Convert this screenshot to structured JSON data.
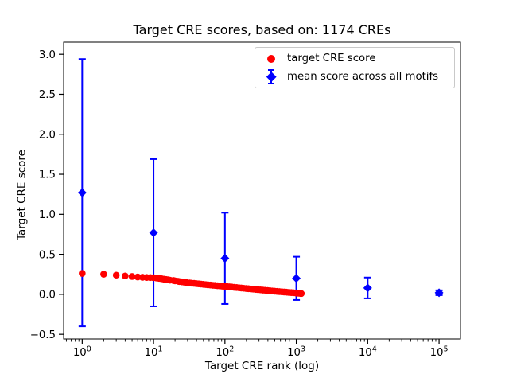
{
  "figure": {
    "background": "#ffffff",
    "frame_color": "#000000"
  },
  "legend": {
    "items": [
      {
        "label": "target CRE score",
        "marker": "red-circle",
        "color": "#ff0000"
      },
      {
        "label": "mean score across all motifs",
        "marker": "blue-diamond-errorbar",
        "color": "#0000ff"
      }
    ]
  },
  "chart_data": {
    "type": "scatter",
    "title": "Target CRE scores, based on: 1174 CREs",
    "xlabel": "Target CRE rank (log)",
    "ylabel": "Target CRE score",
    "x_scale": "log",
    "n_cres": 1174,
    "xlim_log": [
      -0.26,
      5.3
    ],
    "ylim": [
      -0.558,
      3.151
    ],
    "xticks": [
      {
        "value": 1,
        "base": "10",
        "exp": "0"
      },
      {
        "value": 10,
        "base": "10",
        "exp": "1"
      },
      {
        "value": 100,
        "base": "10",
        "exp": "2"
      },
      {
        "value": 1000,
        "base": "10",
        "exp": "3"
      },
      {
        "value": 10000,
        "base": "10",
        "exp": "4"
      },
      {
        "value": 100000,
        "base": "10",
        "exp": "5"
      }
    ],
    "yticks": [
      {
        "value": -0.5,
        "label": "−0.5"
      },
      {
        "value": 0.0,
        "label": "0.0"
      },
      {
        "value": 0.5,
        "label": "0.5"
      },
      {
        "value": 1.0,
        "label": "1.0"
      },
      {
        "value": 1.5,
        "label": "1.5"
      },
      {
        "value": 2.0,
        "label": "2.0"
      },
      {
        "value": 2.5,
        "label": "2.5"
      },
      {
        "value": 3.0,
        "label": "3.0"
      }
    ],
    "series": [
      {
        "name": "target CRE score",
        "marker": "circle",
        "color": "#ff0000",
        "points": [
          [
            1,
            0.262
          ],
          [
            2,
            0.252
          ],
          [
            3,
            0.24
          ],
          [
            4,
            0.23
          ],
          [
            5,
            0.223
          ],
          [
            6,
            0.217
          ],
          [
            7,
            0.213
          ],
          [
            8,
            0.211
          ],
          [
            9,
            0.21
          ],
          [
            10,
            0.208
          ],
          [
            11,
            0.204
          ],
          [
            12,
            0.199
          ],
          [
            13,
            0.195
          ],
          [
            14,
            0.19
          ],
          [
            15,
            0.186
          ],
          [
            16,
            0.182
          ],
          [
            17,
            0.177
          ],
          [
            19,
            0.173
          ],
          [
            20,
            0.169
          ],
          [
            22,
            0.164
          ],
          [
            23,
            0.16
          ],
          [
            25,
            0.156
          ],
          [
            27,
            0.152
          ],
          [
            29,
            0.147
          ],
          [
            32,
            0.143
          ],
          [
            34,
            0.14
          ],
          [
            37,
            0.137
          ],
          [
            40,
            0.134
          ],
          [
            43,
            0.131
          ],
          [
            46,
            0.128
          ],
          [
            50,
            0.125
          ],
          [
            54,
            0.122
          ],
          [
            58,
            0.119
          ],
          [
            63,
            0.116
          ],
          [
            68,
            0.113
          ],
          [
            73,
            0.111
          ],
          [
            79,
            0.108
          ],
          [
            86,
            0.105
          ],
          [
            92,
            0.103
          ],
          [
            100,
            0.1
          ],
          [
            108,
            0.097
          ],
          [
            116,
            0.094
          ],
          [
            125,
            0.091
          ],
          [
            135,
            0.088
          ],
          [
            146,
            0.085
          ],
          [
            158,
            0.082
          ],
          [
            170,
            0.079
          ],
          [
            184,
            0.076
          ],
          [
            199,
            0.073
          ],
          [
            214,
            0.07
          ],
          [
            232,
            0.067
          ],
          [
            250,
            0.065
          ],
          [
            270,
            0.062
          ],
          [
            291,
            0.059
          ],
          [
            315,
            0.056
          ],
          [
            340,
            0.053
          ],
          [
            367,
            0.051
          ],
          [
            396,
            0.048
          ],
          [
            427,
            0.045
          ],
          [
            461,
            0.042
          ],
          [
            498,
            0.039
          ],
          [
            538,
            0.037
          ],
          [
            580,
            0.034
          ],
          [
            627,
            0.032
          ],
          [
            676,
            0.029
          ],
          [
            730,
            0.027
          ],
          [
            788,
            0.024
          ],
          [
            851,
            0.022
          ],
          [
            919,
            0.02
          ],
          [
            992,
            0.017
          ],
          [
            1071,
            0.014
          ],
          [
            1156,
            0.011
          ],
          [
            1174,
            0.01
          ]
        ]
      },
      {
        "name": "mean score across all motifs",
        "marker": "diamond",
        "color": "#0000ff",
        "x": [
          1,
          10,
          100,
          1000,
          10000,
          100000
        ],
        "mean": [
          1.27,
          0.77,
          0.45,
          0.2,
          0.08,
          0.02
        ],
        "err": [
          1.67,
          0.92,
          0.57,
          0.27,
          0.13,
          0.03
        ]
      }
    ]
  }
}
